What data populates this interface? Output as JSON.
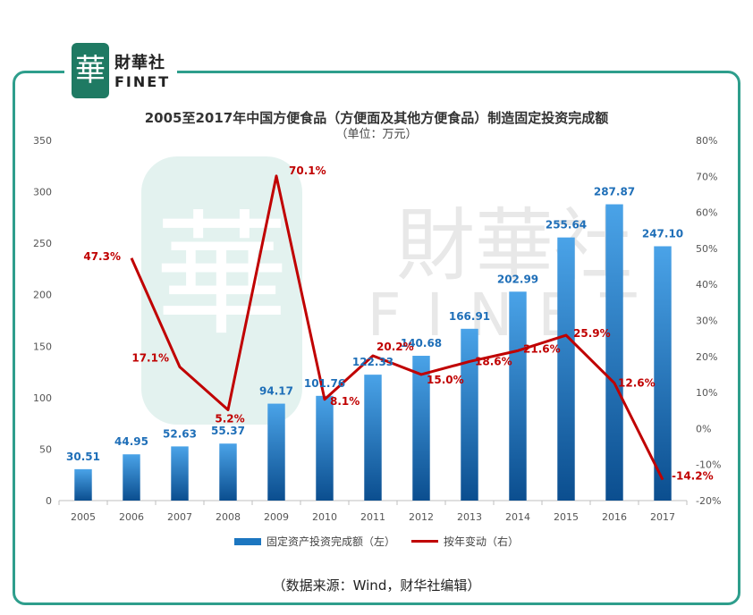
{
  "brand": {
    "cn": "財華社",
    "en": "FINET",
    "mark": "華"
  },
  "watermark": {
    "cn": "財華社",
    "en": "FINET",
    "mark": "華"
  },
  "source_note": "（数据来源：Wind，财华社编辑）",
  "colors": {
    "bar": "#1c76c0",
    "line": "#c00000",
    "frame": "#2e9e8c",
    "bar_label": "#1f6fb8",
    "line_label": "#c00000"
  },
  "chart_data": {
    "type": "bar",
    "title": "2005至2017年中国方便食品（方便面及其他方便食品）制造固定投资完成额",
    "subtitle": "（单位：万元）",
    "categories": [
      "2005",
      "2006",
      "2007",
      "2008",
      "2009",
      "2010",
      "2011",
      "2012",
      "2013",
      "2014",
      "2015",
      "2016",
      "2017"
    ],
    "series": [
      {
        "name": "固定资产投资完成额（左）",
        "type": "bar",
        "axis": "left",
        "values": [
          30.51,
          44.95,
          52.63,
          55.37,
          94.17,
          101.76,
          122.33,
          140.68,
          166.91,
          202.99,
          255.64,
          287.87,
          247.1
        ],
        "labels": [
          "30.51",
          "44.95",
          "52.63",
          "55.37",
          "94.17",
          "101.76",
          "122.33",
          "140.68",
          "166.91",
          "202.99",
          "255.64",
          "287.87",
          "247.10"
        ]
      },
      {
        "name": "按年变动（右）",
        "type": "line",
        "axis": "right",
        "values": [
          null,
          47.3,
          17.1,
          5.2,
          70.1,
          8.1,
          20.2,
          15.0,
          18.6,
          21.6,
          25.9,
          12.6,
          -14.2
        ],
        "labels": [
          null,
          "47.3%",
          "17.1%",
          "5.2%",
          "70.1%",
          "8.1%",
          "20.2%",
          "15.0%",
          "18.6%",
          "21.6%",
          "25.9%",
          "12.6%",
          "-14.2%"
        ]
      }
    ],
    "y_left": {
      "min": 0,
      "max": 350,
      "ticks": [
        "0",
        "50",
        "100",
        "150",
        "200",
        "250",
        "300",
        "350"
      ]
    },
    "y_right": {
      "min": -20,
      "max": 80,
      "ticks": [
        "-20%",
        "-10%",
        "0%",
        "10%",
        "20%",
        "30%",
        "40%",
        "50%",
        "60%",
        "70%",
        "80%"
      ]
    },
    "grid": false,
    "legend_position": "bottom"
  }
}
